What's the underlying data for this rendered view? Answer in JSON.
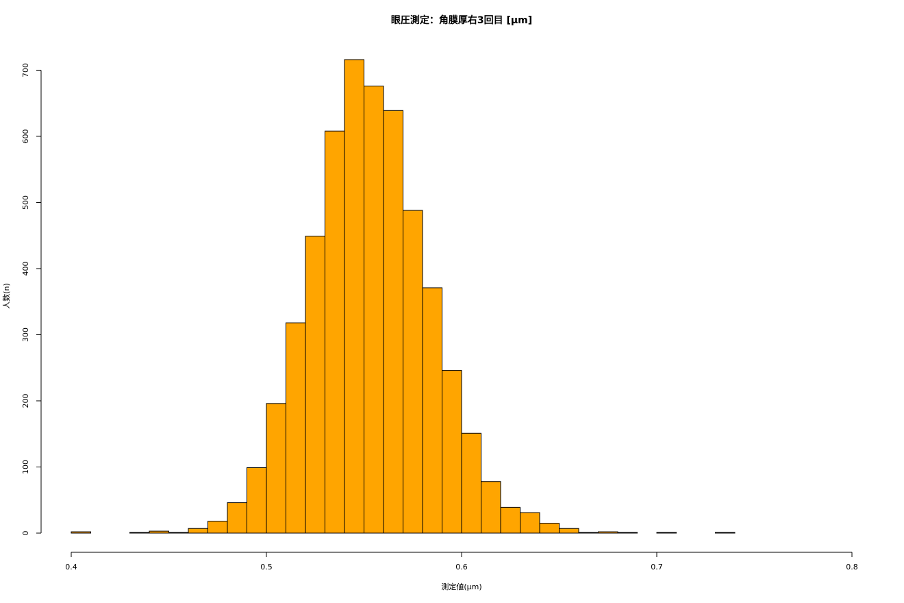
{
  "chart_data": {
    "type": "histogram",
    "title": "眼圧測定：角膜厚右3回目 [µm]",
    "x_label": "測定値(µm)",
    "y_label": "人数(n)",
    "bins": [
      0.4,
      0.41,
      0.42,
      0.43,
      0.44,
      0.45,
      0.46,
      0.47,
      0.48,
      0.49,
      0.5,
      0.51,
      0.52,
      0.53,
      0.54,
      0.55,
      0.56,
      0.57,
      0.58,
      0.59,
      0.6,
      0.61,
      0.62,
      0.63,
      0.64,
      0.65,
      0.66,
      0.67,
      0.68,
      0.69,
      0.7,
      0.71,
      0.72,
      0.73,
      0.74
    ],
    "values": [
      2,
      0,
      0,
      1,
      3,
      1,
      7,
      18,
      46,
      99,
      196,
      318,
      449,
      608,
      716,
      676,
      639,
      488,
      371,
      246,
      151,
      78,
      39,
      31,
      15,
      7,
      1,
      2,
      1,
      0,
      1,
      0,
      0,
      1
    ],
    "color": "#ffa500",
    "xlim": [
      0.4,
      0.8
    ],
    "xticks": [
      0.4,
      0.5,
      0.6,
      0.7,
      0.8
    ],
    "ylim": [
      0,
      716
    ],
    "yticks": [
      0,
      100,
      200,
      300,
      400,
      500,
      600,
      700
    ]
  }
}
